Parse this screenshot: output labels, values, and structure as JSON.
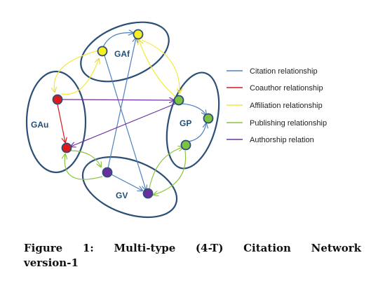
{
  "groups": {
    "gaf": {
      "label": "GAf"
    },
    "gau": {
      "label": "GAu"
    },
    "gp": {
      "label": "GP"
    },
    "gv": {
      "label": "GV"
    }
  },
  "legend": [
    {
      "label": "Citation relationship",
      "color": "#4f81bd"
    },
    {
      "label": "Coauthor relationship",
      "color": "#d7191c"
    },
    {
      "label": "Affiliation relationship",
      "color": "#f3ea3a"
    },
    {
      "label": "Publishing relationship",
      "color": "#8cc43f"
    },
    {
      "label": "Authorship relation",
      "color": "#7030a0"
    }
  ],
  "node_colors": {
    "gaf": "#f7ef22",
    "gau": "#e01a1a",
    "gp": "#7ec242",
    "gv": "#6a2e9e"
  },
  "outline_color": "#2b4f78",
  "caption": {
    "line1": "Figure 1: Multi-type (4-T) Citation Network",
    "line2": "version-1"
  }
}
